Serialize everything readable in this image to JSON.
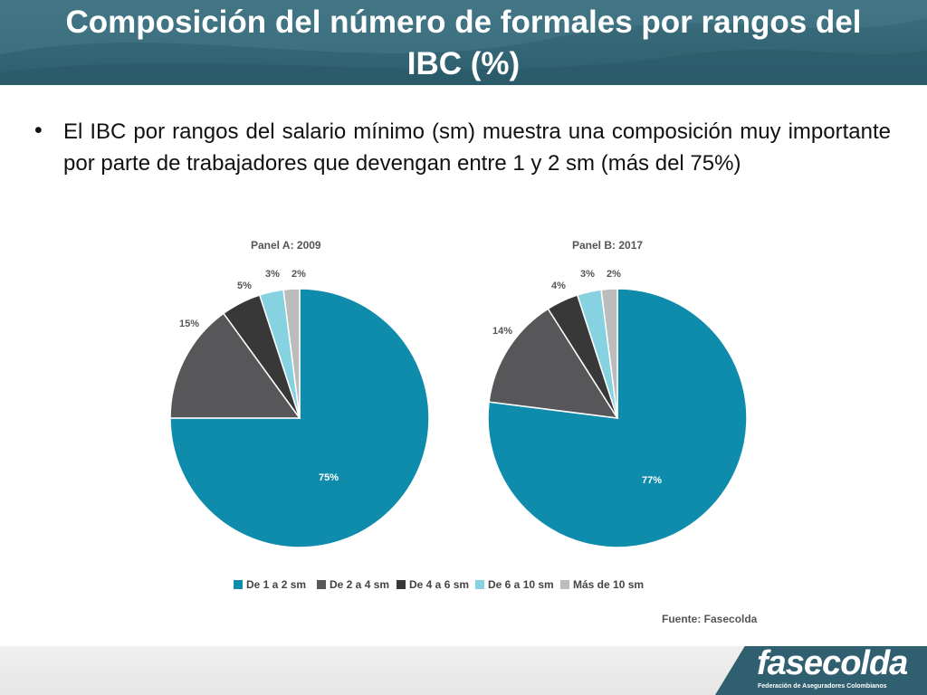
{
  "header": {
    "title_line1": "Composición del número de formales por rangos del",
    "title_line2": "IBC (%)"
  },
  "body": {
    "bullet": "•",
    "text": "El IBC por rangos del salario mínimo (sm) muestra una composición muy importante por parte de trabajadores que devengan entre 1 y 2 sm (más del 75%)"
  },
  "chart_data": [
    {
      "type": "pie",
      "title": "Panel A: 2009",
      "categories": [
        "De 1 a 2 sm",
        "De 2 a 4 sm",
        "De 4 a 6 sm",
        "De 6 a 10 sm",
        "Más de 10 sm"
      ],
      "values": [
        75,
        15,
        5,
        3,
        2
      ],
      "labels": [
        "75%",
        "15%",
        "5%",
        "3%",
        "2%"
      ],
      "colors": [
        "#0f8bab",
        "#57575a",
        "#383838",
        "#86d2e0",
        "#bcbcbc"
      ]
    },
    {
      "type": "pie",
      "title": "Panel B: 2017",
      "categories": [
        "De 1 a 2 sm",
        "De 2 a 4 sm",
        "De 4 a 6 sm",
        "De 6 a 10 sm",
        "Más de 10 sm"
      ],
      "values": [
        77,
        14,
        4,
        3,
        2
      ],
      "labels": [
        "77%",
        "14%",
        "4%",
        "3%",
        "2%"
      ],
      "colors": [
        "#0f8bab",
        "#57575a",
        "#383838",
        "#86d2e0",
        "#bcbcbc"
      ]
    }
  ],
  "legend": {
    "items": [
      {
        "label": "De 1 a 2 sm",
        "color": "#0f8bab"
      },
      {
        "label": "De 2 a 4 sm",
        "color": "#57575a"
      },
      {
        "label": "De 4 a 6 sm",
        "color": "#383838"
      },
      {
        "label": "De 6 a 10 sm",
        "color": "#86d2e0"
      },
      {
        "label": "Más de 10 sm",
        "color": "#bcbcbc"
      }
    ]
  },
  "source": "Fuente: Fasecolda",
  "logo": {
    "name": "fasecolda",
    "subtitle": "Federación de Aseguradores Colombianos"
  }
}
